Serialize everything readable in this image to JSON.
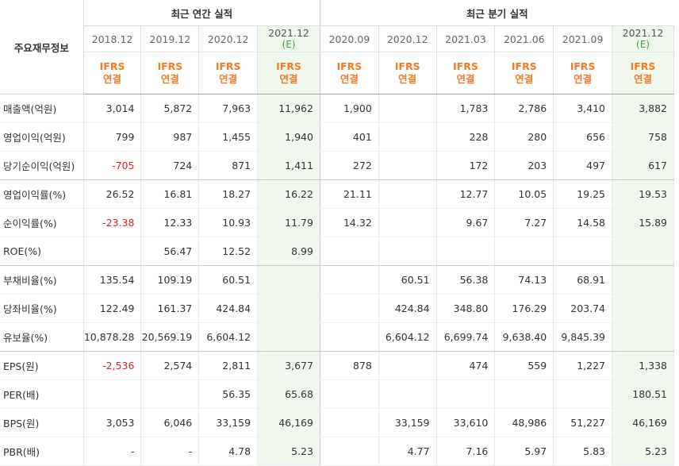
{
  "header": {
    "row_label": "주요재무정보",
    "annual_title": "최근 연간 실적",
    "quarter_title": "최근 분기 실적",
    "ifrs_top": "IFRS",
    "ifrs_bottom": "연결",
    "estimate_mark": "(E)"
  },
  "periods": [
    {
      "label": "2018.12",
      "est": false
    },
    {
      "label": "2019.12",
      "est": false
    },
    {
      "label": "2020.12",
      "est": false
    },
    {
      "label": "2021.12",
      "est": true
    },
    {
      "label": "2020.09",
      "est": false
    },
    {
      "label": "2020.12",
      "est": false
    },
    {
      "label": "2021.03",
      "est": false
    },
    {
      "label": "2021.06",
      "est": false
    },
    {
      "label": "2021.09",
      "est": false
    },
    {
      "label": "2021.12",
      "est": true
    }
  ],
  "rows": [
    {
      "label": "매출액(억원)",
      "values": [
        "3,014",
        "5,872",
        "7,963",
        "11,962",
        "1,900",
        "",
        "1,783",
        "2,786",
        "3,410",
        "3,882"
      ],
      "group_end": false
    },
    {
      "label": "영업이익(억원)",
      "values": [
        "799",
        "987",
        "1,455",
        "1,940",
        "401",
        "",
        "228",
        "280",
        "656",
        "758"
      ],
      "group_end": false
    },
    {
      "label": "당기순이익(억원)",
      "values": [
        "-705",
        "724",
        "871",
        "1,411",
        "272",
        "",
        "172",
        "203",
        "497",
        "617"
      ],
      "group_end": true
    },
    {
      "label": "영업이익률(%)",
      "values": [
        "26.52",
        "16.81",
        "18.27",
        "16.22",
        "21.11",
        "",
        "12.77",
        "10.05",
        "19.25",
        "19.53"
      ],
      "group_end": false
    },
    {
      "label": "순이익률(%)",
      "values": [
        "-23.38",
        "12.33",
        "10.93",
        "11.79",
        "14.32",
        "",
        "9.67",
        "7.27",
        "14.58",
        "15.89"
      ],
      "group_end": false
    },
    {
      "label": "ROE(%)",
      "values": [
        "",
        "56.47",
        "12.52",
        "8.99",
        "",
        "",
        "",
        "",
        "",
        ""
      ],
      "group_end": true
    },
    {
      "label": "부채비율(%)",
      "values": [
        "135.54",
        "109.19",
        "60.51",
        "",
        "",
        "60.51",
        "56.38",
        "74.13",
        "68.91",
        ""
      ],
      "group_end": false
    },
    {
      "label": "당좌비율(%)",
      "values": [
        "122.49",
        "161.37",
        "424.84",
        "",
        "",
        "424.84",
        "348.80",
        "176.29",
        "203.74",
        ""
      ],
      "group_end": false
    },
    {
      "label": "유보율(%)",
      "values": [
        "10,878.28",
        "20,569.19",
        "6,604.12",
        "",
        "",
        "6,604.12",
        "6,699.74",
        "9,638.40",
        "9,845.39",
        ""
      ],
      "group_end": true
    },
    {
      "label": "EPS(원)",
      "values": [
        "-2,536",
        "2,574",
        "2,811",
        "3,677",
        "878",
        "",
        "474",
        "559",
        "1,227",
        "1,338"
      ],
      "group_end": false
    },
    {
      "label": "PER(배)",
      "values": [
        "",
        "",
        "56.35",
        "65.68",
        "",
        "",
        "",
        "",
        "",
        "180.51"
      ],
      "group_end": false
    },
    {
      "label": "BPS(원)",
      "values": [
        "3,053",
        "6,046",
        "33,159",
        "46,169",
        "",
        "33,159",
        "33,610",
        "48,986",
        "51,227",
        "46,169"
      ],
      "group_end": false
    },
    {
      "label": "PBR(배)",
      "values": [
        "-",
        "-",
        "4.78",
        "5.23",
        "",
        "4.77",
        "7.16",
        "5.97",
        "5.83",
        "5.23"
      ],
      "group_end": false
    }
  ],
  "colors": {
    "negative": "#e0202a",
    "ifrs": "#f47a27",
    "estimate_bg": "#f0f8ee"
  }
}
